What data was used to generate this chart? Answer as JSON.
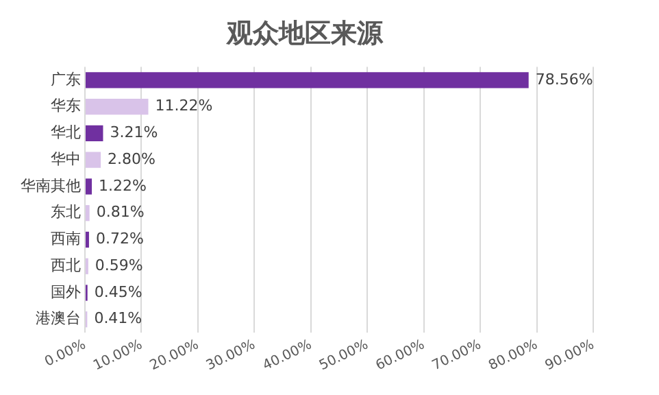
{
  "chart_data": {
    "type": "bar",
    "title": "观众地区来源",
    "orientation": "horizontal",
    "categories": [
      "广东",
      "华东",
      "华北",
      "华中",
      "华南其他",
      "东北",
      "西南",
      "西北",
      "国外",
      "港澳台"
    ],
    "values": [
      78.56,
      11.22,
      3.21,
      2.8,
      1.22,
      0.81,
      0.72,
      0.59,
      0.45,
      0.41
    ],
    "value_labels": [
      "78.56%",
      "11.22%",
      "3.21%",
      "2.80%",
      "1.22%",
      "0.81%",
      "0.72%",
      "0.59%",
      "0.45%",
      "0.41%"
    ],
    "colors": [
      "#7030a0",
      "#d9c3e9",
      "#7030a0",
      "#d9c3e9",
      "#7030a0",
      "#d9c3e9",
      "#7030a0",
      "#d9c3e9",
      "#7030a0",
      "#d9c3e9"
    ],
    "xlim": [
      0,
      90
    ],
    "xticks": [
      {
        "value": 0,
        "label": "0.00%"
      },
      {
        "value": 10,
        "label": "10.00%"
      },
      {
        "value": 20,
        "label": "20.00%"
      },
      {
        "value": 30,
        "label": "30.00%"
      },
      {
        "value": 40,
        "label": "40.00%"
      },
      {
        "value": 50,
        "label": "50.00%"
      },
      {
        "value": 60,
        "label": "60.00%"
      },
      {
        "value": 70,
        "label": "70.00%"
      },
      {
        "value": 80,
        "label": "80.00%"
      },
      {
        "value": 90,
        "label": "90.00%"
      }
    ],
    "grid": "x",
    "legend": false
  }
}
